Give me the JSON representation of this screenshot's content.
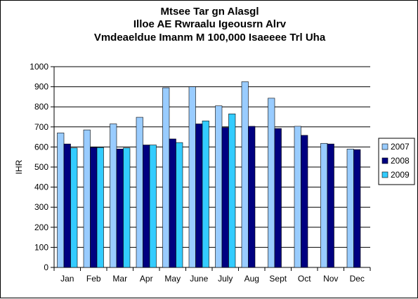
{
  "chart_data": {
    "type": "bar",
    "title": [
      "Mtsee Tar gn Alasgl",
      "Illoe AE Rwraalu Igeousrn Alrv",
      "Vmdeaeldue Imanm M 100,000 Isaeeee Trl Uha"
    ],
    "ylabel": "IHR",
    "xlabel": "",
    "ylim": [
      0,
      1000
    ],
    "yticks": [
      0,
      100,
      200,
      300,
      400,
      500,
      600,
      700,
      800,
      900,
      1000
    ],
    "grid": true,
    "legend_position": "right",
    "categories": [
      "Jan",
      "Feb",
      "Mar",
      "Apr",
      "May",
      "June",
      "July",
      "Aug",
      "Sept",
      "Oct",
      "Nov",
      "Dec"
    ],
    "series": [
      {
        "name": "2007",
        "color": "#99ccff",
        "values": [
          670,
          685,
          715,
          748,
          895,
          900,
          805,
          925,
          843,
          703,
          618,
          590
        ]
      },
      {
        "name": "2008",
        "color": "#000080",
        "values": [
          615,
          598,
          590,
          610,
          640,
          715,
          697,
          703,
          692,
          658,
          615,
          587
        ]
      },
      {
        "name": "2009",
        "color": "#33ccff",
        "values": [
          595,
          597,
          595,
          610,
          622,
          730,
          765,
          null,
          null,
          null,
          null,
          null
        ]
      }
    ]
  }
}
